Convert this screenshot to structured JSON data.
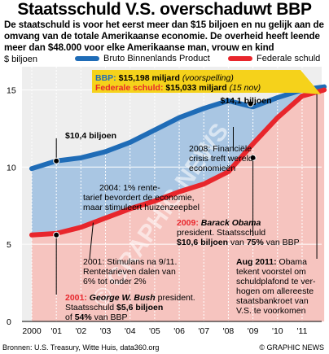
{
  "title": "Staatsschuld V.S. overschaduwt BBP",
  "subtitle": "De staatschuld is voor het eerst meer dan $15 biljoen en nu gelijk aan de omvang van de totale Amerikaanse economie. De overheid heeft leende meer dan $48.000 voor elke Amerikaanse man, vrouw en kind",
  "unit_label": "$ biljoen",
  "source": "Bronnen: U.S. Treasury, Witte Huis, data360.org",
  "credit": "© GRAPHIC NEWS",
  "watermark": "© GRAPHIC NEWS",
  "colors": {
    "gdp": "#1f6cb7",
    "debt": "#e8262c",
    "gdp_fill": "#a9c6e3",
    "debt_fill": "#f6c4bf",
    "box": "#f5d21b"
  },
  "chart_data": {
    "type": "area",
    "x": [
      2000,
      2001,
      2002,
      2003,
      2004,
      2005,
      2006,
      2007,
      2008,
      2009,
      2010,
      2011,
      2011.9
    ],
    "xtick_labels": [
      "2000",
      "'01",
      "'02",
      "'03",
      "'04",
      "'05",
      "'06",
      "'07",
      "'08",
      "'09",
      "'10",
      "'11"
    ],
    "ylim": [
      0,
      16.5
    ],
    "yticks": [
      0,
      5,
      10,
      15
    ],
    "ytick_labels": [
      "0",
      "5",
      "10",
      "15"
    ],
    "grid": true,
    "series": [
      {
        "name": "Bruto Binnenlands Product",
        "values": [
          9.9,
          10.4,
          10.6,
          11.0,
          11.6,
          12.4,
          13.2,
          13.8,
          14.3,
          13.9,
          14.5,
          15.0,
          15.2
        ]
      },
      {
        "name": "Federale schuld",
        "values": [
          5.6,
          5.7,
          6.1,
          6.7,
          7.3,
          7.8,
          8.4,
          8.9,
          9.7,
          11.5,
          13.2,
          14.6,
          15.0
        ]
      }
    ],
    "markers": [
      {
        "x": 2001,
        "y": 5.6,
        "series": "Federale schuld"
      },
      {
        "x": 2001,
        "y": 10.4,
        "series": "Bruto Binnenlands Product"
      },
      {
        "x": 2009,
        "y": 10.6,
        "series": "Federale schuld"
      },
      {
        "x": 2008.9,
        "y": 14.1,
        "series": "Bruto Binnenlands Product"
      }
    ],
    "info_box": {
      "gdp_label": "BBP:",
      "gdp_value": "$15,198 miljard",
      "gdp_note": "(voorspelling)",
      "debt_label": "Federale schuld:",
      "debt_value": "$15,033 miljard",
      "debt_note": "(15 nov)"
    },
    "annotations": {
      "gdp_2001": "$10,4 biljoen",
      "gdp_peak": "$14,1 biljoen",
      "crisis_2008": [
        "2008: Financiële",
        "crisis treft wereld-",
        "economieën"
      ],
      "rate_2004": [
        "2004: 1% rente-",
        "tarief bevordert de economie,",
        "maar stimuleert huizenzeepbel"
      ],
      "obama_2009": {
        "year": "2009:",
        "name": "Barack Obama",
        "line2": "president. Staatsschuld",
        "value": "$10,6 biljoen",
        "mid": "van",
        "pct": "75%",
        "tail": "van BBP"
      },
      "stimulus_2001": [
        "2001: Stimulans na 9/11.",
        "Rentetarieven dalen van",
        "6% tot onder 2%"
      ],
      "bush_2001": {
        "year": "2001:",
        "name": "George W. Bush",
        "tail": "president.",
        "line2a": "Staatsschuld",
        "value": "$5,6 biljoen",
        "line3a": "of",
        "pct": "54%",
        "line3b": "van BBP"
      },
      "aug_2011": [
        "Obama",
        "tekent voorstel om",
        "schuldplafond te ver-",
        "hogen om allereeste",
        "staatsbankroet van",
        "V.S. te voorkomen"
      ],
      "aug_2011_head": "Aug 2011:"
    }
  }
}
